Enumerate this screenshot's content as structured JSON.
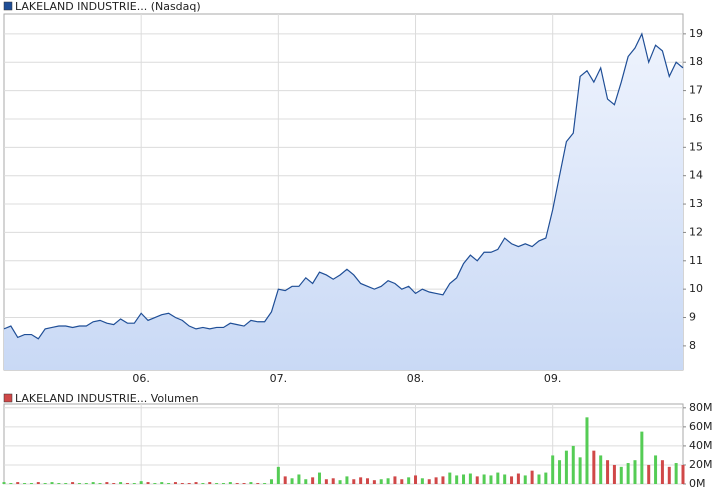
{
  "chart_data": [
    {
      "type": "area",
      "categories": [
        null,
        null,
        null,
        null,
        null,
        null,
        null,
        null,
        null,
        null,
        null,
        null,
        null,
        null,
        null,
        null,
        null,
        null,
        null,
        null,
        "06.",
        null,
        null,
        null,
        null,
        null,
        null,
        null,
        null,
        null,
        null,
        null,
        null,
        null,
        null,
        null,
        null,
        null,
        null,
        null,
        "07.",
        null,
        null,
        null,
        null,
        null,
        null,
        null,
        null,
        null,
        null,
        null,
        null,
        null,
        null,
        null,
        null,
        null,
        null,
        null,
        "08.",
        null,
        null,
        null,
        null,
        null,
        null,
        null,
        null,
        null,
        null,
        null,
        null,
        null,
        null,
        null,
        null,
        null,
        null,
        null,
        "09.",
        null,
        null,
        null,
        null,
        null,
        null,
        null,
        null,
        null,
        null,
        null,
        null,
        null,
        null,
        null,
        null,
        null,
        null,
        null
      ],
      "series": [
        {
          "name": "LAKELAND INDUSTRIE... (Nasdaq)",
          "color": "#1f4e96",
          "values": [
            8.6,
            8.7,
            8.3,
            8.4,
            8.4,
            8.25,
            8.6,
            8.65,
            8.7,
            8.7,
            8.65,
            8.7,
            8.7,
            8.85,
            8.9,
            8.8,
            8.75,
            8.95,
            8.8,
            8.8,
            9.15,
            8.9,
            9.0,
            9.1,
            9.15,
            9.0,
            8.9,
            8.7,
            8.6,
            8.65,
            8.6,
            8.65,
            8.65,
            8.8,
            8.75,
            8.7,
            8.9,
            8.85,
            8.85,
            9.2,
            10.0,
            9.95,
            10.1,
            10.1,
            10.4,
            10.2,
            10.6,
            10.5,
            10.35,
            10.5,
            10.7,
            10.5,
            10.2,
            10.1,
            10.0,
            10.1,
            10.3,
            10.2,
            10.0,
            10.1,
            9.85,
            10.0,
            9.9,
            9.85,
            9.8,
            10.2,
            10.4,
            10.9,
            11.2,
            11.0,
            11.3,
            11.3,
            11.4,
            11.8,
            11.6,
            11.5,
            11.6,
            11.5,
            11.7,
            11.8,
            12.8,
            14.0,
            15.2,
            15.5,
            17.5,
            17.7,
            17.3,
            17.8,
            16.7,
            16.5,
            17.3,
            18.2,
            18.5,
            19.0,
            18.0,
            18.6,
            18.4,
            17.5,
            18.0,
            17.8
          ]
        }
      ],
      "ylim": [
        7.15,
        19.7
      ],
      "yticks": [
        8,
        9,
        10,
        11,
        12,
        13,
        14,
        15,
        16,
        17,
        18,
        19
      ],
      "grid": true
    },
    {
      "type": "bar",
      "series": [
        {
          "name": "LAKELAND INDUSTRIE... Volumen",
          "color": "#d04848",
          "values": [
            2,
            1,
            2,
            1,
            1,
            2,
            1,
            2,
            1,
            1,
            2,
            1,
            1,
            2,
            1,
            2,
            1,
            2,
            1,
            1,
            3,
            2,
            1,
            2,
            1,
            2,
            1,
            1,
            2,
            1,
            2,
            1,
            1,
            2,
            1,
            1,
            2,
            1,
            1,
            5,
            18,
            8,
            6,
            10,
            5,
            7,
            12,
            5,
            6,
            4,
            8,
            5,
            7,
            6,
            4,
            5,
            6,
            8,
            5,
            7,
            9,
            6,
            5,
            7,
            8,
            12,
            9,
            10,
            11,
            8,
            10,
            9,
            12,
            10,
            8,
            11,
            9,
            14,
            10,
            12,
            30,
            25,
            35,
            40,
            28,
            70,
            35,
            30,
            25,
            20,
            18,
            22,
            25,
            55,
            20,
            30,
            25,
            18,
            22,
            20
          ]
        }
      ],
      "up_color": "#55cc55",
      "down_color": "#d04848",
      "ylim": [
        0,
        84
      ],
      "yticks": [
        {
          "value": 0,
          "label": "0M"
        },
        {
          "value": 20,
          "label": "20M"
        },
        {
          "value": 40,
          "label": "40M"
        },
        {
          "value": 60,
          "label": "60M"
        },
        {
          "value": 80,
          "label": "80M"
        }
      ],
      "grid": true
    }
  ]
}
